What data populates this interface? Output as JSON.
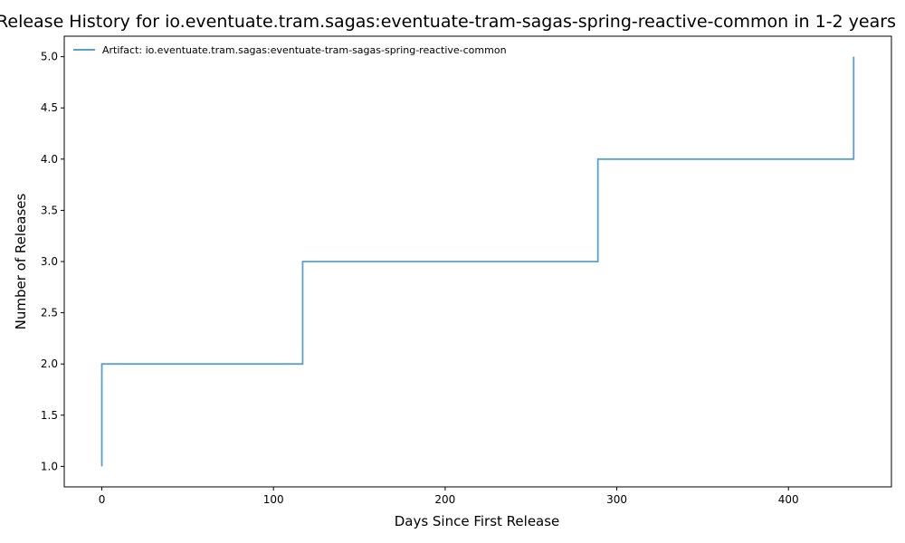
{
  "chart_data": {
    "type": "line",
    "drawstyle": "steps-post",
    "title": "Release History for io.eventuate.tram.sagas:eventuate-tram-sagas-spring-reactive-common in 1-2 years",
    "xlabel": "Days Since First Release",
    "ylabel": "Number of Releases",
    "xlim": [
      -21.9,
      460
    ],
    "ylim": [
      0.8,
      5.2
    ],
    "xticks": [
      0,
      100,
      200,
      300,
      400
    ],
    "xtick_labels": [
      "0",
      "100",
      "200",
      "300",
      "400"
    ],
    "yticks": [
      1.0,
      1.5,
      2.0,
      2.5,
      3.0,
      3.5,
      4.0,
      4.5,
      5.0
    ],
    "ytick_labels": [
      "1.0",
      "1.5",
      "2.0",
      "2.5",
      "3.0",
      "3.5",
      "4.0",
      "4.5",
      "5.0"
    ],
    "grid": false,
    "legend": "top-left",
    "series": [
      {
        "name": "Artifact: io.eventuate.tram.sagas:eventuate-tram-sagas-spring-reactive-common",
        "color": "#5b9fcd",
        "x": [
          0,
          0,
          117,
          289,
          438
        ],
        "y": [
          1,
          2,
          3,
          4,
          5
        ]
      }
    ]
  }
}
